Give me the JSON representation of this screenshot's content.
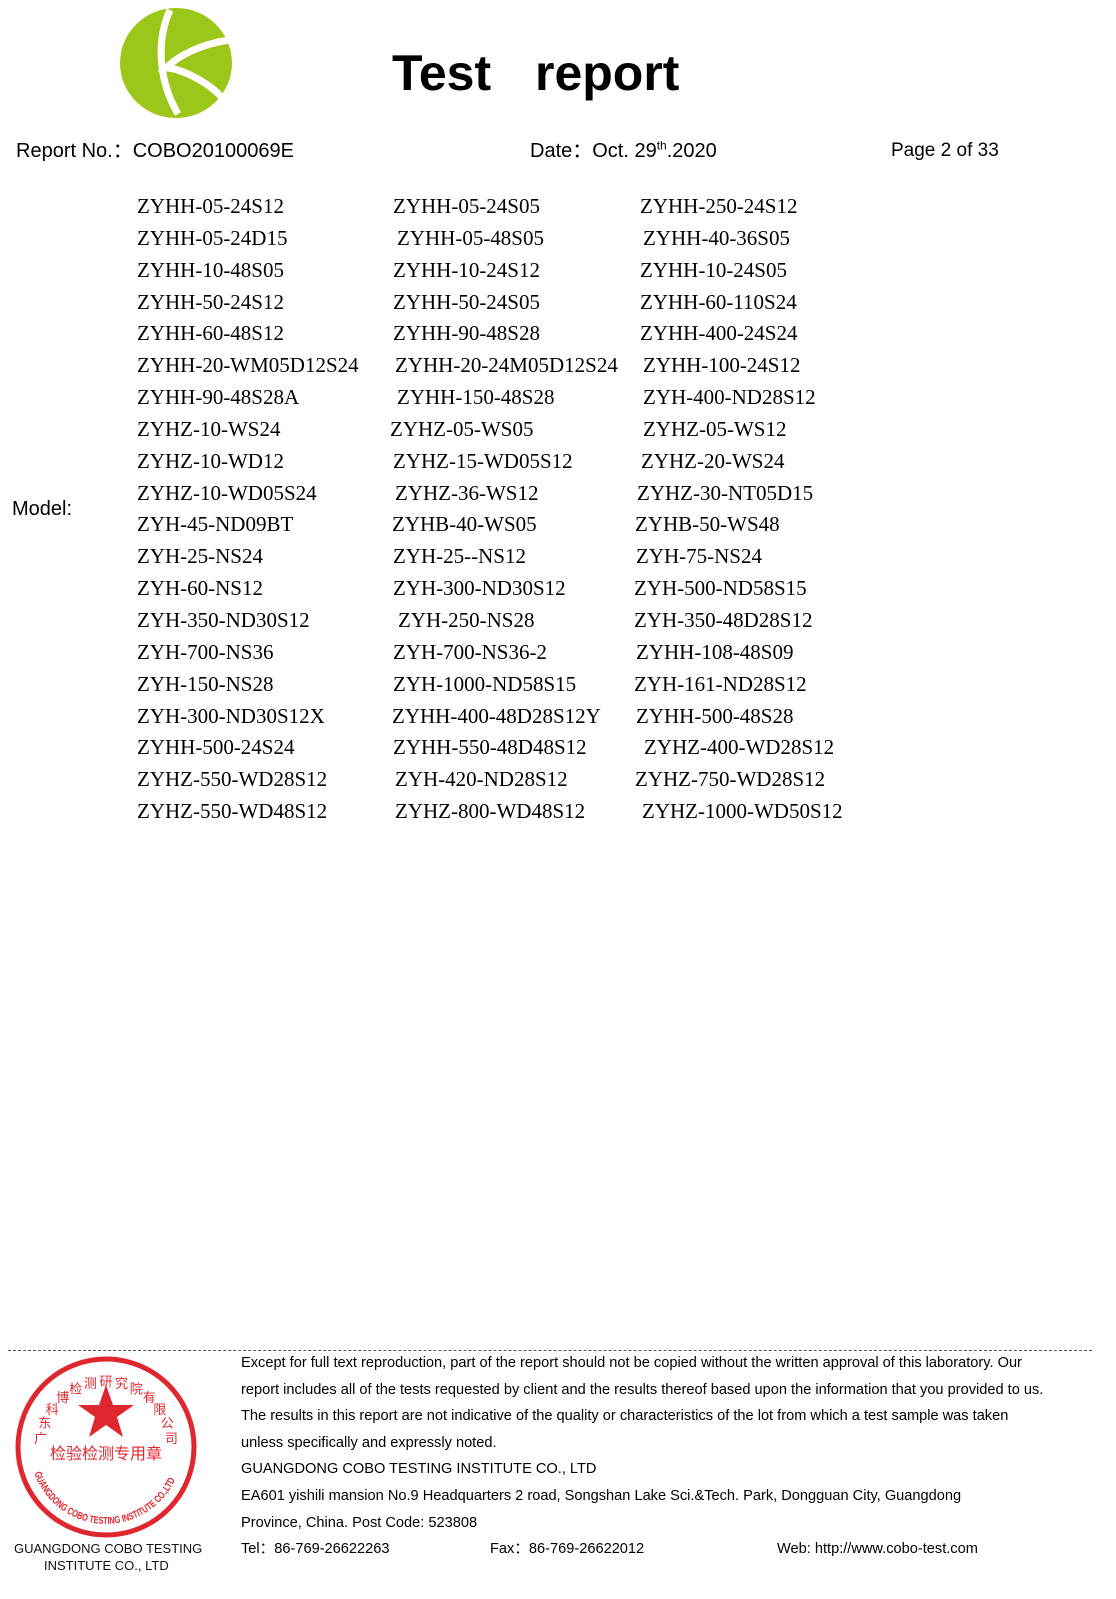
{
  "logo": {
    "name": "COBO logo",
    "color": "#9cc71a"
  },
  "header": {
    "title": "Test report",
    "report_no": "Report No.：COBO20100069E",
    "date_prefix": "Date：Oct. 29",
    "date_sup": "th",
    "date_suffix": ".2020",
    "page": "Page 2 of 33"
  },
  "model_label": "Model:",
  "models": [
    [
      "ZYHH-05-24S12",
      "ZYHH-05-24S05",
      "ZYHH-250-24S12"
    ],
    [
      "ZYHH-05-24D15",
      "ZYHH-05-48S05",
      "ZYHH-40-36S05"
    ],
    [
      "ZYHH-10-48S05",
      "ZYHH-10-24S12",
      "ZYHH-10-24S05"
    ],
    [
      "ZYHH-50-24S12",
      "ZYHH-50-24S05",
      "ZYHH-60-110S24"
    ],
    [
      "ZYHH-60-48S12",
      "ZYHH-90-48S28",
      "ZYHH-400-24S24"
    ],
    [
      "ZYHH-20-WM05D12S24",
      "ZYHH-20-24M05D12S24",
      "ZYHH-100-24S12"
    ],
    [
      "ZYHH-90-48S28A",
      "ZYHH-150-48S28",
      "ZYH-400-ND28S12"
    ],
    [
      "ZYHZ-10-WS24",
      "ZYHZ-05-WS05",
      "ZYHZ-05-WS12"
    ],
    [
      "ZYHZ-10-WD12",
      "ZYHZ-15-WD05S12",
      "ZYHZ-20-WS24"
    ],
    [
      "ZYHZ-10-WD05S24",
      "ZYHZ-36-WS12",
      "ZYHZ-30-NT05D15"
    ],
    [
      "ZYH-45-ND09BT",
      "ZYHB-40-WS05",
      "ZYHB-50-WS48"
    ],
    [
      "ZYH-25-NS24",
      "ZYH-25--NS12",
      "ZYH-75-NS24"
    ],
    [
      "ZYH-60-NS12",
      "ZYH-300-ND30S12",
      "ZYH-500-ND58S15"
    ],
    [
      "ZYH-350-ND30S12",
      "ZYH-250-NS28",
      "ZYH-350-48D28S12"
    ],
    [
      "ZYH-700-NS36",
      "ZYH-700-NS36-2",
      "ZYHH-108-48S09"
    ],
    [
      "ZYH-150-NS28",
      "ZYH-1000-ND58S15",
      "ZYH-161-ND28S12"
    ],
    [
      "ZYH-300-ND30S12X",
      "ZYHH-400-48D28S12Y",
      "ZYHH-500-48S28"
    ],
    [
      "ZYHH-500-24S24",
      "ZYHH-550-48D48S12",
      "ZYHZ-400-WD28S12"
    ],
    [
      "ZYHZ-550-WD28S12",
      "ZYH-420-ND28S12",
      "ZYHZ-750-WD28S12"
    ],
    [
      "ZYHZ-550-WD48S12",
      "ZYHZ-800-WD48S12",
      "ZYHZ-1000-WD50S12"
    ]
  ],
  "footer": {
    "lines": [
      "Except for full text reproduction, part of the report should not be copied without the written approval of this laboratory. Our",
      "report includes all of the tests requested by client and the results thereof based upon the information that you provided to us.",
      "The results in this report are not indicative of the quality or characteristics of the lot from which a test sample was taken",
      "unless specifically and expressly noted.",
      "GUANGDONG COBO TESTING INSTITUTE CO., LTD",
      "EA601 yishili mansion No.9 Headquarters 2 road, Songshan Lake Sci.&Tech. Park, Dongguan City, Guangdong",
      "Province, China. Post Code: 523808"
    ],
    "tel": "Tel：86-769-26622263",
    "fax": "Fax：86-769-26622012",
    "web": "Web: http://www.cobo-test.com"
  },
  "stamp": {
    "color": "#e0262e",
    "top_text": "广东科博检测研究院有限公司",
    "middle_text": "检验检测专用章",
    "bottom_text": "GUANGDONG COBO TESTING INSTITUTE CO.,LTD",
    "overlay_line1": "GUANGDONG COBO TESTING",
    "overlay_line2": "INSTITUTE CO., LTD"
  }
}
